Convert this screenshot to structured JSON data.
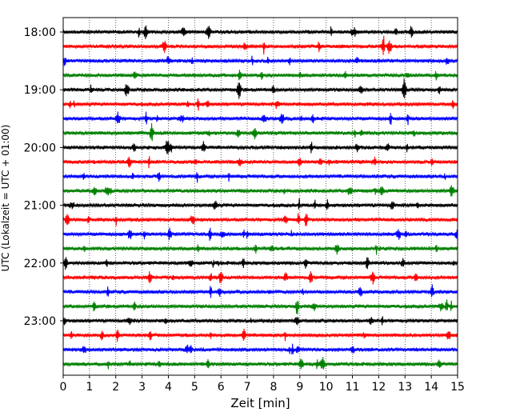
{
  "chart_data": {
    "type": "line",
    "title": "",
    "xlabel": "Zeit  [min]",
    "ylabel": "UTC (Lokalzeit = UTC + 01:00)",
    "xlim": [
      0,
      15
    ],
    "xticks": [
      "0",
      "1",
      "2",
      "3",
      "4",
      "5",
      "6",
      "7",
      "8",
      "9",
      "10",
      "11",
      "12",
      "13",
      "14",
      "15"
    ],
    "ytick_labels": [
      "18:00",
      "19:00",
      "20:00",
      "21:00",
      "22:00",
      "23:00"
    ],
    "grid": "vertical dotted at each minute",
    "trace_colors": [
      "#000000",
      "#ff0000",
      "#0000ff",
      "#008000"
    ],
    "traces": [
      {
        "start": "18:00"
      },
      {
        "start": "18:15"
      },
      {
        "start": "18:30"
      },
      {
        "start": "18:45"
      },
      {
        "start": "19:00"
      },
      {
        "start": "19:15"
      },
      {
        "start": "19:30"
      },
      {
        "start": "19:45"
      },
      {
        "start": "20:00"
      },
      {
        "start": "20:15"
      },
      {
        "start": "20:30"
      },
      {
        "start": "20:45"
      },
      {
        "start": "21:00"
      },
      {
        "start": "21:15"
      },
      {
        "start": "21:30"
      },
      {
        "start": "21:45"
      },
      {
        "start": "22:00"
      },
      {
        "start": "22:15"
      },
      {
        "start": "22:30"
      },
      {
        "start": "22:45"
      },
      {
        "start": "23:00"
      },
      {
        "start": "23:15"
      },
      {
        "start": "23:30"
      },
      {
        "start": "23:45"
      }
    ]
  }
}
